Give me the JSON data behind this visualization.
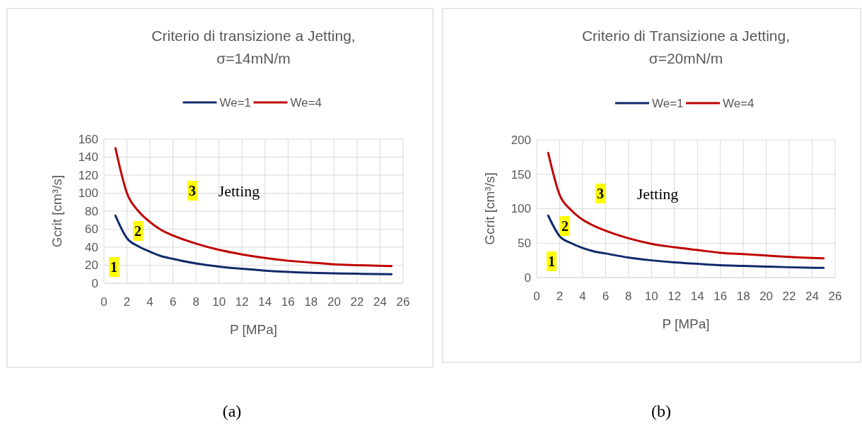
{
  "chart_data": [
    {
      "type": "line",
      "title": "Criterio di transizione a Jetting,\nσ=14mN/m",
      "xlabel": "P [MPa]",
      "ylabel": "Gcrit [cm³/s]",
      "x": [
        1,
        2,
        3,
        4,
        5,
        6,
        8,
        10,
        12,
        14,
        16,
        18,
        20,
        22,
        25
      ],
      "series": [
        {
          "name": "We=1",
          "color": "#0f2a6b",
          "values": [
            75,
            50,
            41,
            35,
            30,
            27,
            22,
            18.5,
            16,
            14,
            12.5,
            11.5,
            11,
            10.5,
            10
          ]
        },
        {
          "name": "We=4",
          "color": "#c00000",
          "values": [
            150,
            100,
            80,
            68,
            59,
            53,
            44,
            37,
            32,
            28,
            25,
            23,
            21,
            20,
            19
          ]
        }
      ],
      "xlim": [
        0,
        26
      ],
      "xticks": [
        0,
        2,
        4,
        6,
        8,
        10,
        12,
        14,
        16,
        18,
        20,
        22,
        24,
        26
      ],
      "ylim": [
        0,
        160
      ],
      "yticks": [
        0,
        20,
        40,
        60,
        80,
        100,
        120,
        140,
        160
      ],
      "grid": true,
      "legend": "top",
      "marker": "none",
      "line_style": "solid",
      "annotations": [
        "1",
        "2",
        "3",
        "Jetting",
        "(a)"
      ]
    },
    {
      "type": "line",
      "title": "Criterio di Transizione a Jetting,\nσ=20mN/m",
      "xlabel": "P [MPa]",
      "ylabel": "Gcrit [cm³/s]",
      "x": [
        1,
        2,
        3,
        4,
        5,
        6,
        8,
        10,
        12,
        14,
        16,
        18,
        20,
        22,
        25
      ],
      "series": [
        {
          "name": "We=1",
          "color": "#0f2a6b",
          "values": [
            90,
            60,
            50,
            43,
            38,
            35,
            29,
            25,
            22,
            20,
            18,
            17,
            16,
            15,
            14
          ]
        },
        {
          "name": "We=4",
          "color": "#c00000",
          "values": [
            181,
            120,
            98,
            84,
            75,
            68,
            57,
            49,
            44,
            40,
            36,
            34,
            32,
            30,
            28
          ]
        }
      ],
      "xlim": [
        0,
        26
      ],
      "xticks": [
        0,
        2,
        4,
        6,
        8,
        10,
        12,
        14,
        16,
        18,
        20,
        22,
        24,
        26
      ],
      "ylim": [
        0,
        200
      ],
      "yticks": [
        0,
        50,
        100,
        150,
        200
      ],
      "grid": true,
      "legend": "top",
      "marker": "none",
      "line_style": "solid",
      "annotations": [
        "1",
        "2",
        "3",
        "Jetting",
        "(b)"
      ]
    }
  ]
}
